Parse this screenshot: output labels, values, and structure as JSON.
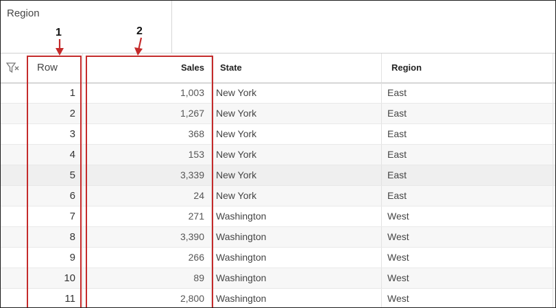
{
  "region_panel": {
    "title": "Region"
  },
  "columns": {
    "row": "Row",
    "sales": "Sales",
    "state": "State",
    "region": "Region"
  },
  "icons": {
    "filter": "filter-icon"
  },
  "rows": [
    {
      "row": "1",
      "sales": "1,003",
      "state": "New York",
      "region": "East"
    },
    {
      "row": "2",
      "sales": "1,267",
      "state": "New York",
      "region": "East"
    },
    {
      "row": "3",
      "sales": "368",
      "state": "New York",
      "region": "East"
    },
    {
      "row": "4",
      "sales": "153",
      "state": "New York",
      "region": "East"
    },
    {
      "row": "5",
      "sales": "3,339",
      "state": "New York",
      "region": "East"
    },
    {
      "row": "6",
      "sales": "24",
      "state": "New York",
      "region": "East"
    },
    {
      "row": "7",
      "sales": "271",
      "state": "Washington",
      "region": "West"
    },
    {
      "row": "8",
      "sales": "3,390",
      "state": "Washington",
      "region": "West"
    },
    {
      "row": "9",
      "sales": "266",
      "state": "Washington",
      "region": "West"
    },
    {
      "row": "10",
      "sales": "89",
      "state": "Washington",
      "region": "West"
    },
    {
      "row": "11",
      "sales": "2,800",
      "state": "Washington",
      "region": "West"
    }
  ],
  "callouts": [
    {
      "label": "1"
    },
    {
      "label": "2"
    }
  ],
  "colors": {
    "callout": "#c42a2a",
    "alt_row": "#f7f7f7",
    "hover_row": "#efefef"
  }
}
